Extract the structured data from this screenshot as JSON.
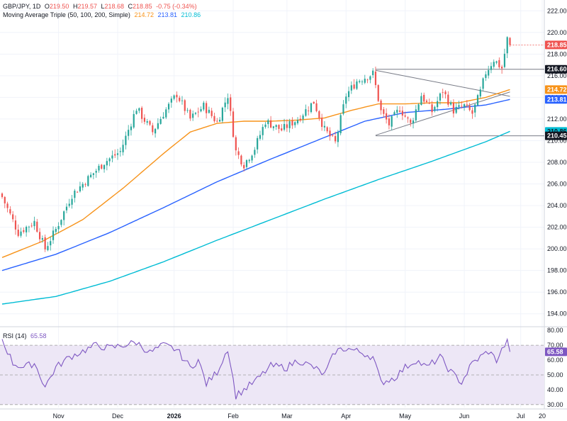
{
  "header": {
    "symbol": "GBP/JPY, 1D",
    "open_label": "O",
    "open": "219.50",
    "high_label": "H",
    "high": "219.57",
    "low_label": "L",
    "low": "218.68",
    "close_label": "C",
    "close": "218.85",
    "change": "-0.75 (-0.34%)",
    "ma_title": "Moving Average Triple (50, 100, 200, Simple)",
    "ma50": "214.72",
    "ma100": "213.81",
    "ma200": "210.86"
  },
  "rsi_header": {
    "title": "RSI (14)",
    "value": "65.58"
  },
  "colors": {
    "up": "#26a69a",
    "down": "#ef5350",
    "ma50": "#f7931a",
    "ma100": "#2962ff",
    "ma200": "#00bcd4",
    "rsi": "#7e57c2",
    "rsi_band": "#ede7f6",
    "trendline": "#787b86",
    "grid": "#f0f3fa"
  },
  "price_axis": {
    "ticks": [
      "222.00",
      "220.00",
      "218.00",
      "216.00",
      "214.00",
      "212.00",
      "210.00",
      "208.00",
      "206.00",
      "204.00",
      "202.00",
      "200.00",
      "198.00",
      "196.00",
      "194.00"
    ]
  },
  "rsi_axis": {
    "ticks": [
      "80.00",
      "70.00",
      "60.00",
      "50.00",
      "40.00",
      "30.00"
    ]
  },
  "time_axis": {
    "labels": [
      "Nov",
      "Dec",
      "2026",
      "Feb",
      "Mar",
      "Apr",
      "May",
      "Jun",
      "Jul",
      "20"
    ]
  },
  "badges": [
    {
      "text": "218.85",
      "value": 218.85,
      "color": "#ef5350",
      "text_color": "#ffffff"
    },
    {
      "text": "216.60",
      "value": 216.6,
      "color": "#131722",
      "text_color": "#ffffff"
    },
    {
      "text": "214.72",
      "value": 214.72,
      "color": "#f7931a",
      "text_color": "#ffffff"
    },
    {
      "text": "213.81",
      "value": 213.81,
      "color": "#2962ff",
      "text_color": "#ffffff"
    },
    {
      "text": "210.86",
      "value": 210.86,
      "color": "#00bcd4",
      "text_color": "#131722"
    },
    {
      "text": "210.45",
      "value": 210.45,
      "color": "#131722",
      "text_color": "#ffffff"
    }
  ],
  "rsi_badge": {
    "text": "65.58",
    "value": 65.58
  },
  "chart_data": {
    "type": "candlestick",
    "symbol": "GBP/JPY",
    "timeframe": "1D",
    "ylim": [
      193,
      223
    ],
    "rsi_ylim": [
      28,
      82
    ],
    "rsi_levels": [
      70,
      50,
      30
    ],
    "grid": true,
    "close_keyframes": [
      [
        0,
        204.8
      ],
      [
        6,
        201.5
      ],
      [
        12,
        202.5
      ],
      [
        16,
        200.0
      ],
      [
        20,
        201.8
      ],
      [
        26,
        205.0
      ],
      [
        32,
        206.5
      ],
      [
        38,
        208.0
      ],
      [
        44,
        209.0
      ],
      [
        50,
        213.0
      ],
      [
        56,
        210.8
      ],
      [
        60,
        212.5
      ],
      [
        65,
        214.3
      ],
      [
        70,
        212.0
      ],
      [
        75,
        213.2
      ],
      [
        80,
        211.7
      ],
      [
        84,
        214.2
      ],
      [
        87,
        209.0
      ],
      [
        90,
        207.8
      ],
      [
        94,
        209.3
      ],
      [
        98,
        211.8
      ],
      [
        104,
        211.0
      ],
      [
        110,
        212.0
      ],
      [
        116,
        213.6
      ],
      [
        120,
        211.0
      ],
      [
        124,
        209.8
      ],
      [
        128,
        214.2
      ],
      [
        132,
        215.5
      ],
      [
        138,
        216.2
      ],
      [
        141,
        212.7
      ],
      [
        144,
        211.5
      ],
      [
        148,
        213.0
      ],
      [
        152,
        211.5
      ],
      [
        156,
        214.2
      ],
      [
        160,
        212.7
      ],
      [
        164,
        214.6
      ],
      [
        168,
        212.8
      ],
      [
        172,
        213.2
      ],
      [
        175,
        212.5
      ],
      [
        178,
        214.5
      ],
      [
        180,
        216.3
      ],
      [
        183,
        217.5
      ],
      [
        186,
        216.7
      ],
      [
        188,
        219.4
      ],
      [
        189,
        218.85
      ]
    ],
    "ma50": [
      [
        0,
        199.2
      ],
      [
        15,
        200.7
      ],
      [
        30,
        202.7
      ],
      [
        45,
        205.6
      ],
      [
        60,
        208.8
      ],
      [
        70,
        210.8
      ],
      [
        80,
        211.6
      ],
      [
        90,
        211.8
      ],
      [
        100,
        211.8
      ],
      [
        110,
        211.9
      ],
      [
        120,
        212.1
      ],
      [
        130,
        212.8
      ],
      [
        140,
        213.4
      ],
      [
        150,
        213.4
      ],
      [
        160,
        213.5
      ],
      [
        170,
        213.5
      ],
      [
        180,
        214.0
      ],
      [
        189,
        214.72
      ]
    ],
    "ma100": [
      [
        0,
        198.0
      ],
      [
        20,
        199.5
      ],
      [
        40,
        201.5
      ],
      [
        60,
        203.8
      ],
      [
        80,
        206.2
      ],
      [
        100,
        208.3
      ],
      [
        120,
        210.3
      ],
      [
        135,
        211.8
      ],
      [
        150,
        212.6
      ],
      [
        165,
        212.9
      ],
      [
        180,
        213.3
      ],
      [
        189,
        213.81
      ]
    ],
    "ma200": [
      [
        0,
        194.9
      ],
      [
        20,
        195.6
      ],
      [
        40,
        197.0
      ],
      [
        60,
        198.8
      ],
      [
        80,
        200.8
      ],
      [
        100,
        202.7
      ],
      [
        120,
        204.6
      ],
      [
        140,
        206.4
      ],
      [
        160,
        208.1
      ],
      [
        180,
        209.9
      ],
      [
        189,
        210.86
      ]
    ],
    "trendlines": [
      {
        "name": "upper-triangle-line",
        "points": [
          [
            139,
            216.5
          ],
          [
            189,
            214.1
          ]
        ]
      },
      {
        "name": "lower-triangle-line",
        "points": [
          [
            139,
            210.5
          ],
          [
            189,
            214.5
          ]
        ]
      },
      {
        "name": "resistance-216-60",
        "points": [
          [
            139,
            216.6
          ],
          [
            201,
            216.6
          ]
        ]
      },
      {
        "name": "support-210-45",
        "points": [
          [
            139,
            210.45
          ],
          [
            201,
            210.45
          ]
        ]
      },
      {
        "name": "last-price-line",
        "points": [
          [
            189,
            218.85
          ],
          [
            201,
            218.85
          ]
        ]
      }
    ],
    "rsi_keyframes": [
      [
        0,
        74
      ],
      [
        4,
        58
      ],
      [
        8,
        55
      ],
      [
        12,
        58
      ],
      [
        16,
        42
      ],
      [
        20,
        55
      ],
      [
        25,
        62
      ],
      [
        30,
        66
      ],
      [
        35,
        70
      ],
      [
        40,
        68
      ],
      [
        45,
        70
      ],
      [
        50,
        72
      ],
      [
        55,
        65
      ],
      [
        60,
        70
      ],
      [
        65,
        67
      ],
      [
        70,
        55
      ],
      [
        73,
        60
      ],
      [
        76,
        44
      ],
      [
        80,
        52
      ],
      [
        84,
        68
      ],
      [
        87,
        36
      ],
      [
        90,
        40
      ],
      [
        95,
        47
      ],
      [
        100,
        56
      ],
      [
        106,
        55
      ],
      [
        110,
        60
      ],
      [
        116,
        55
      ],
      [
        120,
        50
      ],
      [
        124,
        66
      ],
      [
        128,
        68
      ],
      [
        134,
        65
      ],
      [
        138,
        62
      ],
      [
        141,
        45
      ],
      [
        146,
        48
      ],
      [
        150,
        55
      ],
      [
        154,
        60
      ],
      [
        158,
        55
      ],
      [
        163,
        62
      ],
      [
        167,
        52
      ],
      [
        171,
        45
      ],
      [
        175,
        58
      ],
      [
        178,
        62
      ],
      [
        181,
        66
      ],
      [
        184,
        60
      ],
      [
        187,
        70
      ],
      [
        188,
        72
      ],
      [
        189,
        65.58
      ]
    ]
  }
}
